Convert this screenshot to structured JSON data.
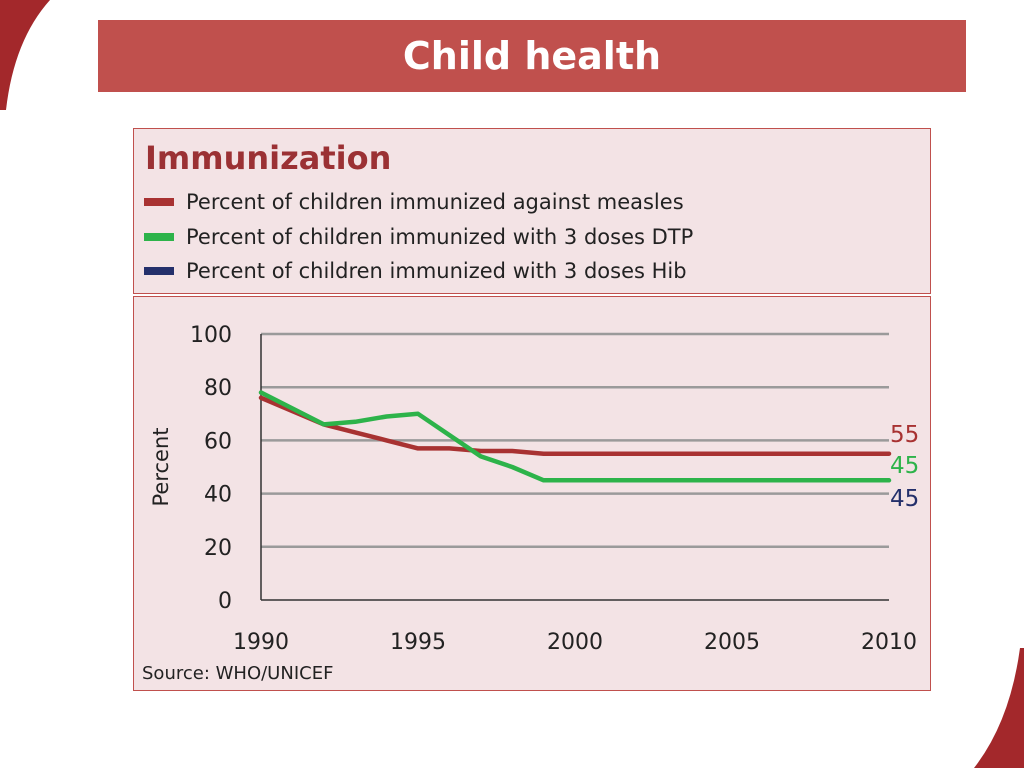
{
  "slide": {
    "title": "Child health"
  },
  "legend": {
    "title": "Immunization",
    "items": [
      {
        "label": "Percent of children immunized against measles",
        "color": "#a83232"
      },
      {
        "label": "Percent of children immunized with 3 doses DTP",
        "color": "#2db34a"
      },
      {
        "label": "Percent of children immunized with 3 doses Hib",
        "color": "#24306b"
      }
    ]
  },
  "source": "Source: WHO/UNICEF",
  "chart_data": {
    "type": "line",
    "ylabel": "Percent",
    "xlabel": "",
    "xlim": [
      1990,
      2010
    ],
    "ylim": [
      0,
      100
    ],
    "x_ticks": [
      "1990",
      "1995",
      "2000",
      "2005",
      "2010"
    ],
    "y_ticks": [
      "0",
      "20",
      "40",
      "60",
      "80",
      "100"
    ],
    "grid": true,
    "series": [
      {
        "name": "Percent of children immunized against measles",
        "color": "#a83232",
        "x": [
          1990,
          1992,
          1993,
          1994,
          1995,
          1996,
          1997,
          1998,
          1999,
          2010
        ],
        "y": [
          76,
          66,
          63,
          60,
          57,
          57,
          56,
          56,
          55,
          55
        ]
      },
      {
        "name": "Percent of children immunized with 3 doses DTP",
        "color": "#2db34a",
        "x": [
          1990,
          1992,
          1993,
          1994,
          1995,
          1996,
          1997,
          1998,
          1999,
          2010
        ],
        "y": [
          78,
          66,
          67,
          69,
          70,
          62,
          54,
          50,
          45,
          45
        ]
      },
      {
        "name": "Percent of children immunized with 3 doses Hib",
        "color": "#24306b",
        "x": [],
        "y": []
      }
    ],
    "end_labels": [
      {
        "text": "55",
        "color": "#a83232"
      },
      {
        "text": "45",
        "color": "#2db34a"
      },
      {
        "text": "45",
        "color": "#24306b"
      }
    ]
  }
}
